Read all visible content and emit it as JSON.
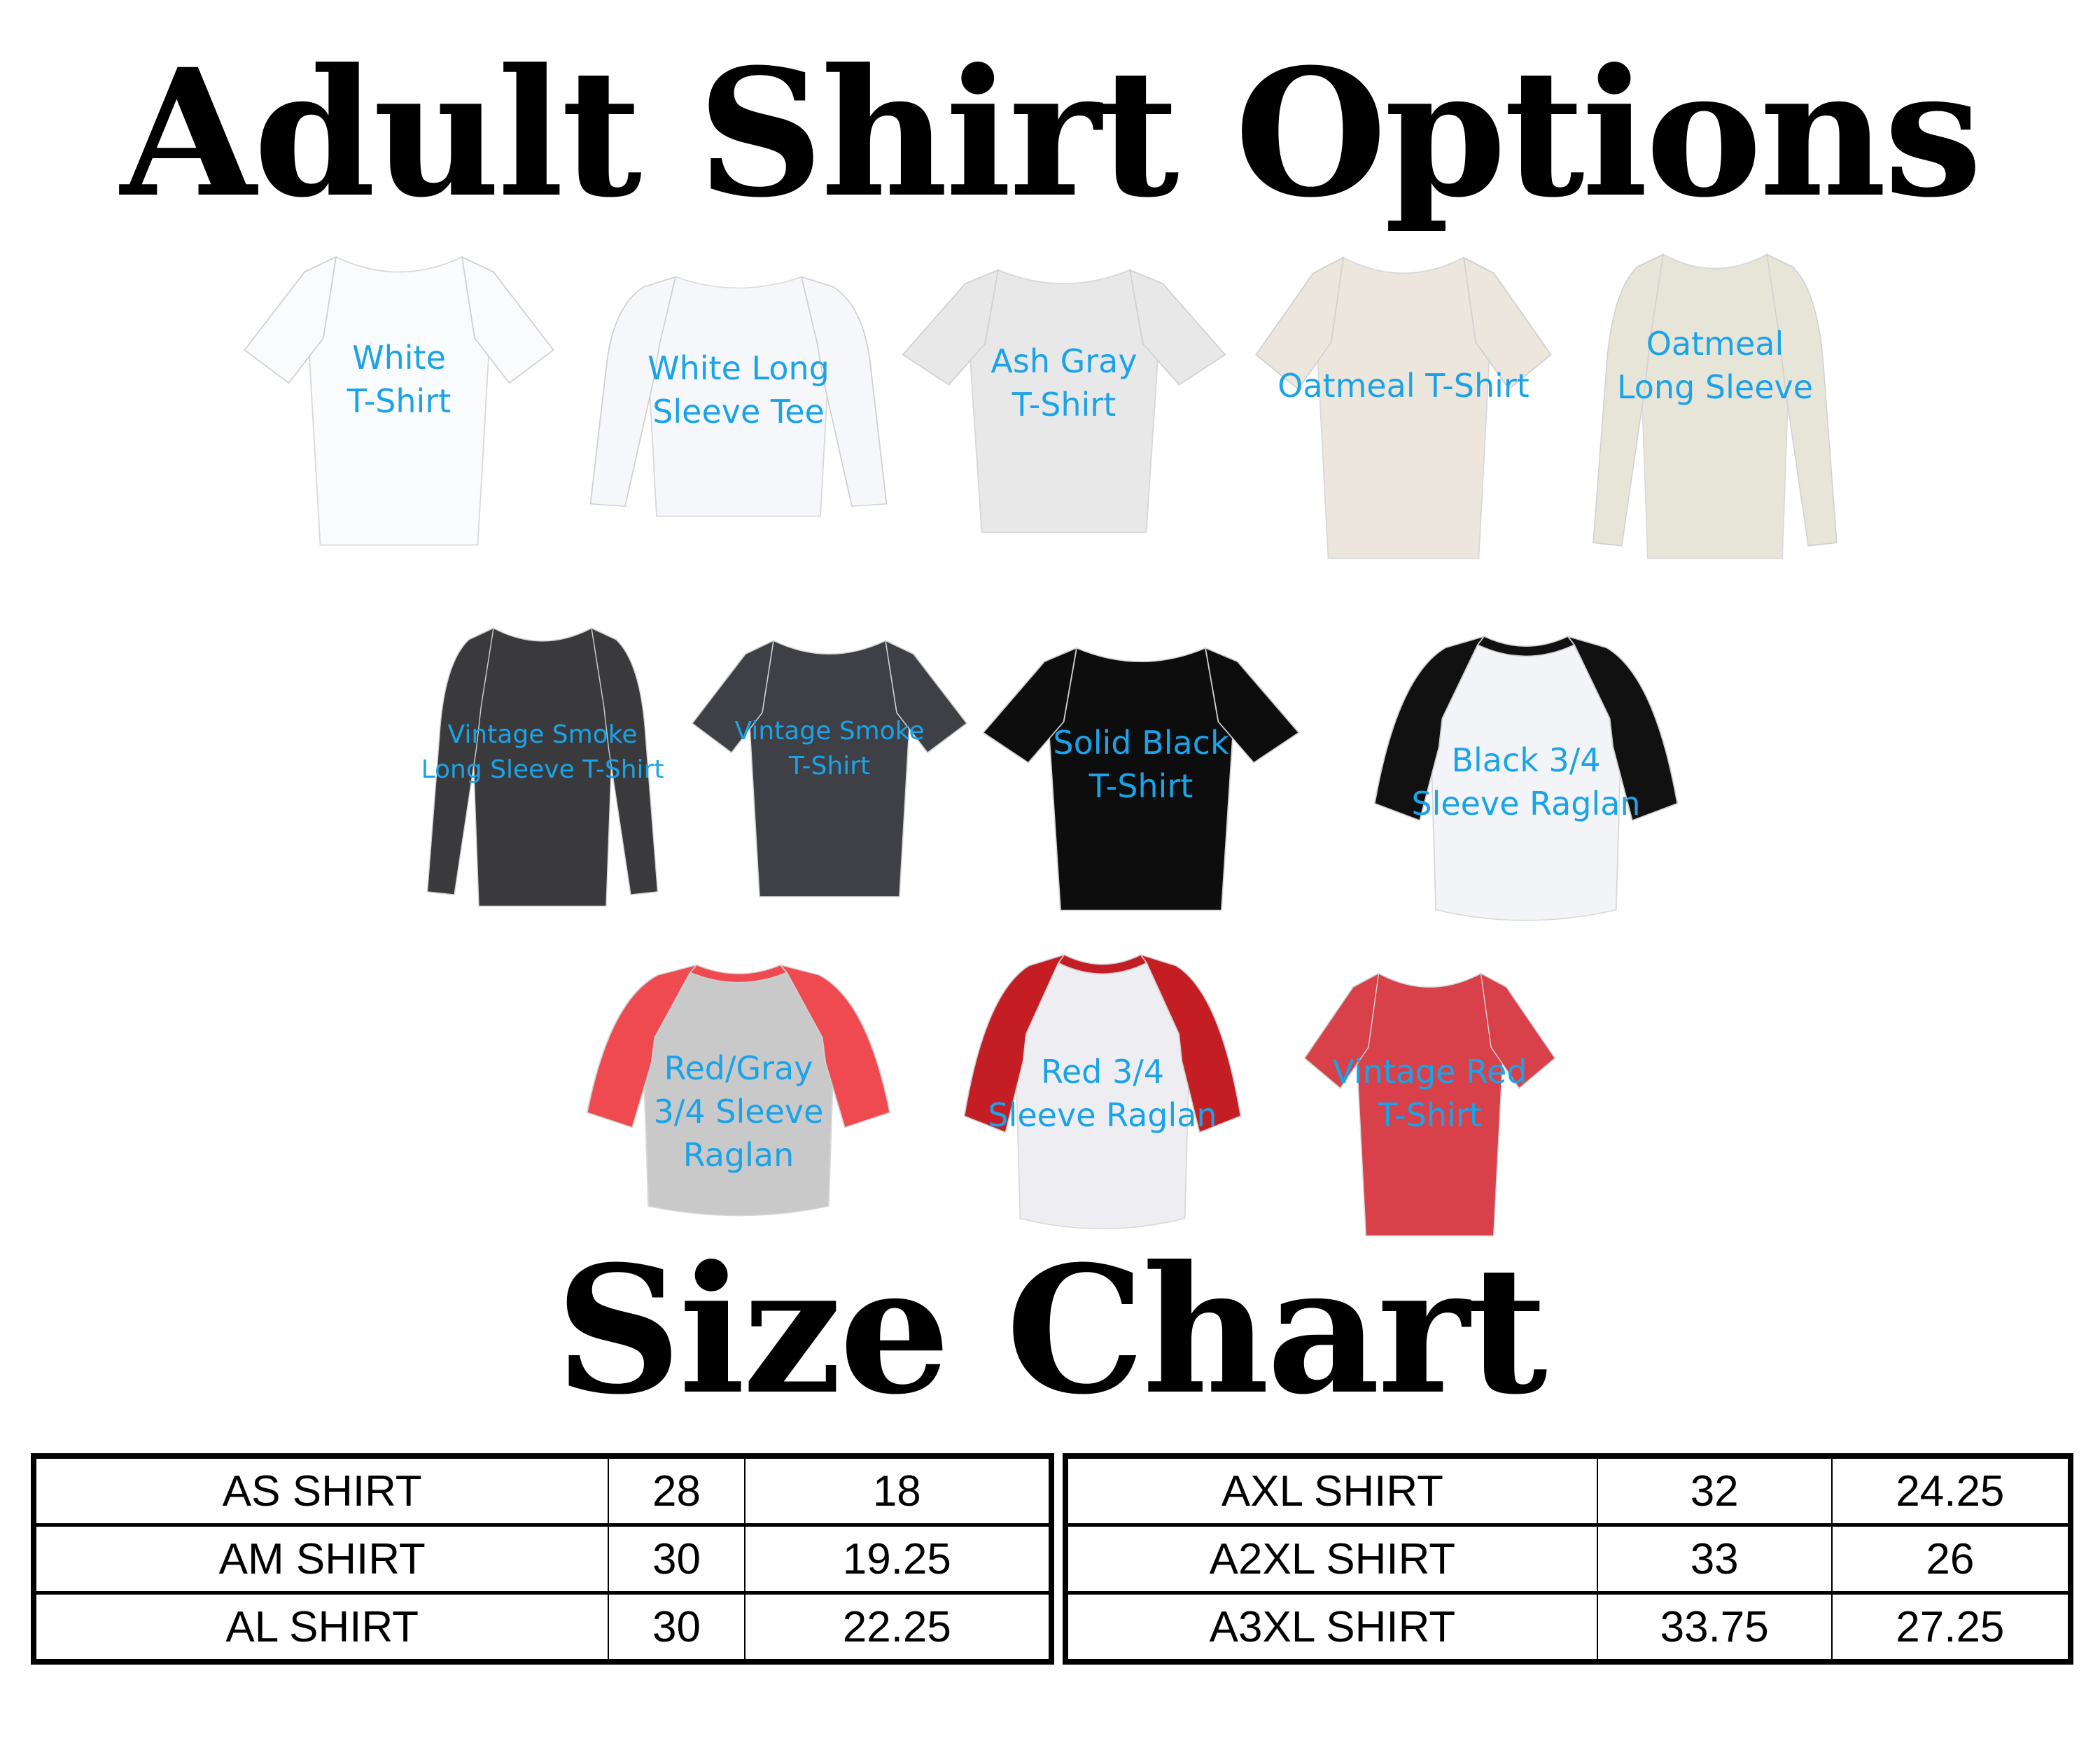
{
  "title": "Adult Shirt Options",
  "size_chart_title": "Size Chart",
  "label_color": "#1aa3e8",
  "shirts": [
    {
      "label": "White\nT-Shirt",
      "style": "tshirt",
      "body": "#fafbfd",
      "sleeve": "#fafbfd"
    },
    {
      "label": "White Long\nSleeve Tee",
      "style": "longsleeve",
      "body": "#f6f7fb",
      "sleeve": "#f6f7fb"
    },
    {
      "label": "Ash Gray\nT-Shirt",
      "style": "tshirt",
      "body": "#e9e8e8",
      "sleeve": "#e9e8e8"
    },
    {
      "label": "Oatmeal T-Shirt",
      "style": "tshirt",
      "body": "#ece6dc",
      "sleeve": "#ece6dc"
    },
    {
      "label": "Oatmeal\nLong Sleeve",
      "style": "longsleeve",
      "body": "#e7e4d8",
      "sleeve": "#e7e4d8"
    },
    {
      "label": "Vintage Smoke\nLong Sleeve T-Shirt",
      "style": "longsleeve",
      "body": "#3a3a3c",
      "sleeve": "#3a3a3c"
    },
    {
      "label": "Vintage Smoke\nT-Shirt",
      "style": "tshirt",
      "body": "#3e4046",
      "sleeve": "#3e4046"
    },
    {
      "label": "Solid Black\nT-Shirt",
      "style": "tshirt",
      "body": "#0d0d0d",
      "sleeve": "#0d0d0d"
    },
    {
      "label": "Black 3/4\nSleeve Raglan",
      "style": "raglan",
      "body": "#f3f4f7",
      "sleeve": "#111111"
    },
    {
      "label": "Red/Gray\n3/4 Sleeve\nRaglan",
      "style": "raglan",
      "body": "#c9c9c9",
      "sleeve": "#ef4a50"
    },
    {
      "label": "Red 3/4\nSleeve Raglan",
      "style": "raglan",
      "body": "#eeeef2",
      "sleeve": "#c41e24"
    },
    {
      "label": "Vintage Red\nT-Shirt",
      "style": "tshirt",
      "body": "#d8404a",
      "sleeve": "#d8404a"
    }
  ],
  "size_table_left": [
    [
      "AS SHIRT",
      "28",
      "18"
    ],
    [
      "AM SHIRT",
      "30",
      "19.25"
    ],
    [
      "AL SHIRT",
      "30",
      "22.25"
    ]
  ],
  "size_table_right": [
    [
      "AXL SHIRT",
      "32",
      "24.25"
    ],
    [
      "A2XL SHIRT",
      "33",
      "26"
    ],
    [
      "A3XL SHIRT",
      "33.75",
      "27.25"
    ]
  ]
}
